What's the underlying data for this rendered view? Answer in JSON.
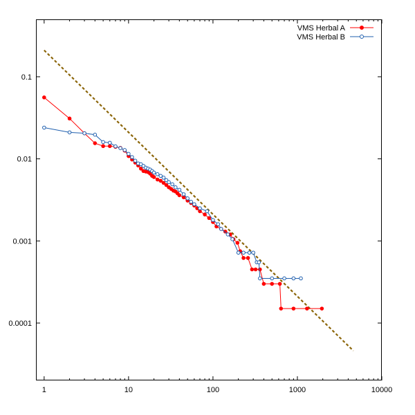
{
  "chart_data": {
    "type": "line",
    "xscale": "log",
    "yscale": "log",
    "xlim": [
      0.8,
      10000
    ],
    "ylim": [
      2e-05,
      0.5
    ],
    "grid": false,
    "legend_position": "top-right",
    "xticks": [
      {
        "value": 1,
        "label": "1"
      },
      {
        "value": 10,
        "label": "10"
      },
      {
        "value": 100,
        "label": "100"
      },
      {
        "value": 1000,
        "label": "1000"
      },
      {
        "value": 10000,
        "label": "10000"
      }
    ],
    "yticks": [
      {
        "value": 0.1,
        "label": "0.1"
      },
      {
        "value": 0.01,
        "label": "0.01"
      },
      {
        "value": 0.001,
        "label": "0.001"
      },
      {
        "value": 0.0001,
        "label": "0.0001"
      }
    ],
    "series": [
      {
        "name": "VMS Herbal A",
        "color": "#ff0000",
        "marker": "filled-circle",
        "points": [
          [
            1,
            0.056
          ],
          [
            2,
            0.031
          ],
          [
            3,
            0.0205
          ],
          [
            4,
            0.0155
          ],
          [
            5,
            0.0143
          ],
          [
            6,
            0.0143
          ],
          [
            7,
            0.014
          ],
          [
            8,
            0.0136
          ],
          [
            9,
            0.0126
          ],
          [
            10,
            0.0108
          ],
          [
            11,
            0.0098
          ],
          [
            12,
            0.009
          ],
          [
            13,
            0.0083
          ],
          [
            14,
            0.0076
          ],
          [
            15,
            0.0071
          ],
          [
            16,
            0.007
          ],
          [
            17,
            0.0069
          ],
          [
            18,
            0.0066
          ],
          [
            19,
            0.0062
          ],
          [
            20,
            0.006
          ],
          [
            22,
            0.0056
          ],
          [
            24,
            0.0054
          ],
          [
            26,
            0.0051
          ],
          [
            28,
            0.0048
          ],
          [
            30,
            0.0045
          ],
          [
            32,
            0.0043
          ],
          [
            34,
            0.0041
          ],
          [
            36,
            0.004
          ],
          [
            38,
            0.0038
          ],
          [
            40,
            0.0036
          ],
          [
            45,
            0.0034
          ],
          [
            50,
            0.0031
          ],
          [
            55,
            0.0029
          ],
          [
            60,
            0.0027
          ],
          [
            65,
            0.0025
          ],
          [
            70,
            0.0023
          ],
          [
            80,
            0.0021
          ],
          [
            90,
            0.0019
          ],
          [
            100,
            0.0017
          ],
          [
            110,
            0.0015
          ],
          [
            125,
            0.0014
          ],
          [
            140,
            0.0013
          ],
          [
            160,
            0.0012
          ],
          [
            175,
            0.00105
          ],
          [
            195,
            0.00095
          ],
          [
            210,
            0.00075
          ],
          [
            230,
            0.00062
          ],
          [
            260,
            0.00062
          ],
          [
            290,
            0.00045
          ],
          [
            320,
            0.00045
          ],
          [
            360,
            0.00045
          ],
          [
            400,
            0.0003
          ],
          [
            500,
            0.0003
          ],
          [
            620,
            0.0003
          ],
          [
            640,
            0.00015
          ],
          [
            900,
            0.00015
          ],
          [
            1300,
            0.00015
          ],
          [
            1950,
            0.00015
          ]
        ]
      },
      {
        "name": "VMS Herbal B",
        "color": "#1f5fae",
        "marker": "open-circle",
        "points": [
          [
            1,
            0.024
          ],
          [
            2,
            0.021
          ],
          [
            3,
            0.0205
          ],
          [
            4,
            0.0197
          ],
          [
            5,
            0.016
          ],
          [
            6,
            0.0157
          ],
          [
            7,
            0.0142
          ],
          [
            8,
            0.0135
          ],
          [
            9,
            0.0128
          ],
          [
            10,
            0.0115
          ],
          [
            11,
            0.0105
          ],
          [
            12,
            0.0095
          ],
          [
            13,
            0.0088
          ],
          [
            14,
            0.0086
          ],
          [
            15,
            0.0082
          ],
          [
            16,
            0.0078
          ],
          [
            17,
            0.0076
          ],
          [
            18,
            0.0074
          ],
          [
            19,
            0.0071
          ],
          [
            20,
            0.0068
          ],
          [
            22,
            0.0065
          ],
          [
            24,
            0.0062
          ],
          [
            26,
            0.0059
          ],
          [
            28,
            0.0055
          ],
          [
            30,
            0.0052
          ],
          [
            33,
            0.0049
          ],
          [
            36,
            0.0045
          ],
          [
            40,
            0.0042
          ],
          [
            45,
            0.0037
          ],
          [
            50,
            0.0033
          ],
          [
            55,
            0.003
          ],
          [
            60,
            0.0028
          ],
          [
            70,
            0.0025
          ],
          [
            85,
            0.0023
          ],
          [
            100,
            0.0018
          ],
          [
            115,
            0.0016
          ],
          [
            125,
            0.0014
          ],
          [
            150,
            0.0012
          ],
          [
            170,
            0.00105
          ],
          [
            200,
            0.00072
          ],
          [
            230,
            0.00072
          ],
          [
            270,
            0.00072
          ],
          [
            300,
            0.00072
          ],
          [
            330,
            0.00055
          ],
          [
            350,
            0.00055
          ],
          [
            360,
            0.00035
          ],
          [
            500,
            0.00035
          ],
          [
            700,
            0.00035
          ],
          [
            900,
            0.00035
          ],
          [
            1100,
            0.00035
          ]
        ]
      }
    ],
    "reference_line": {
      "color": "#8b6508",
      "style": "dashed",
      "from": [
        1,
        0.21
      ],
      "to": [
        4600,
        4.6e-05
      ]
    }
  }
}
